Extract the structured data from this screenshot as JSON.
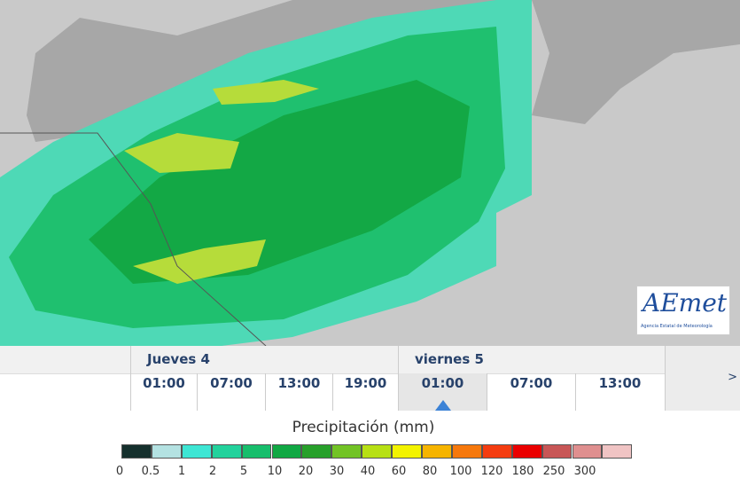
{
  "logo": {
    "title": "AEmet",
    "subtitle": "Agencia Estatal de Meteorología"
  },
  "timeline": {
    "days": [
      {
        "label": "Jueves 4",
        "times": [
          "01:00",
          "07:00",
          "13:00",
          "19:00"
        ]
      },
      {
        "label": "viernes 5",
        "times": [
          "01:00",
          "07:00",
          "13:00"
        ]
      }
    ],
    "next": ">"
  },
  "legend": {
    "title": "Precipitación (mm)",
    "labels": [
      0,
      0.5,
      1,
      2,
      5,
      10,
      20,
      30,
      40,
      60,
      80,
      100,
      120,
      180,
      250,
      300
    ],
    "colors": [
      "#15302d",
      "#b4e2e2",
      "#3ee6d4",
      "#22d29c",
      "#17be6c",
      "#10a843",
      "#27a02a",
      "#72c325",
      "#b7e014",
      "#f3f300",
      "#f6b400",
      "#f6780c",
      "#f43c10",
      "#ea0000",
      "#c85656",
      "#df8f8f",
      "#f0c4c4"
    ]
  }
}
